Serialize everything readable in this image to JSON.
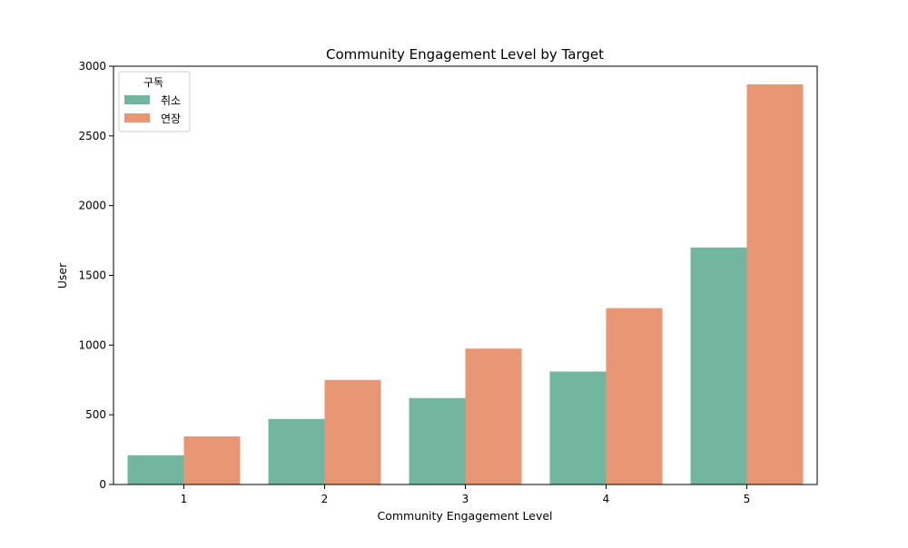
{
  "chart_data": {
    "type": "bar",
    "title": "Community Engagement Level by Target",
    "xlabel": "Community Engagement Level",
    "ylabel": "User",
    "categories": [
      "1",
      "2",
      "3",
      "4",
      "5"
    ],
    "series": [
      {
        "name": "취소",
        "color": "#72b6a0",
        "values": [
          210,
          470,
          620,
          810,
          1700
        ]
      },
      {
        "name": "연장",
        "color": "#e99675",
        "values": [
          345,
          750,
          975,
          1265,
          2870
        ]
      }
    ],
    "ylim": [
      0,
      3000
    ],
    "yticks": [
      0,
      500,
      1000,
      1500,
      2000,
      2500,
      3000
    ],
    "grid": false,
    "legend": {
      "title": "구독",
      "placement": "top-left"
    }
  }
}
